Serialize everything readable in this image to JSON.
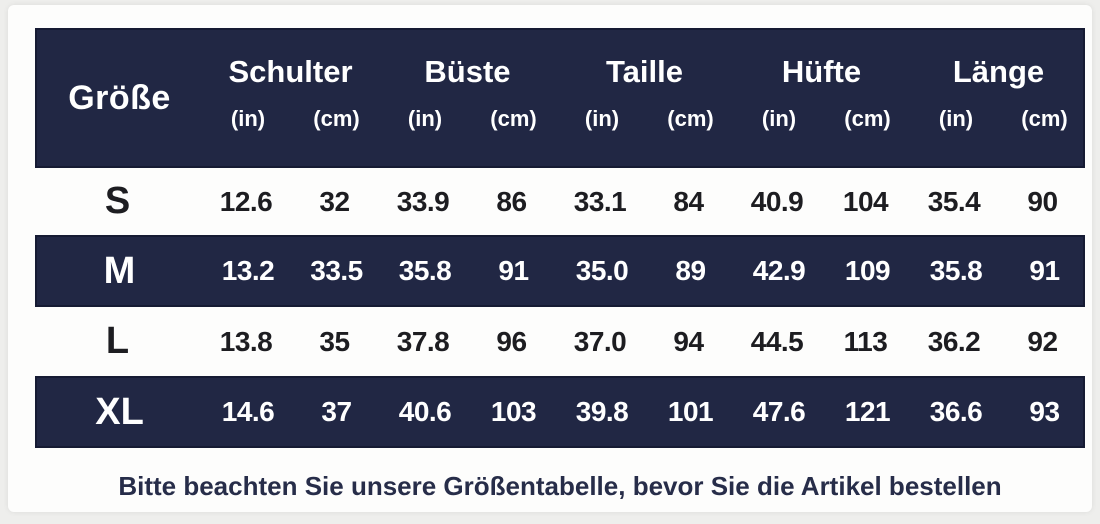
{
  "colors": {
    "band_navy": "#212744",
    "band_border": "#161b33",
    "light_row_text": "#1d1d21",
    "footer_text": "#272d49",
    "card_background": "#fdfdfc"
  },
  "chart_data": {
    "type": "table",
    "size_column_header": "Größe",
    "measure_groups": [
      "Schulter",
      "Büste",
      "Taille",
      "Hüfte",
      "Länge"
    ],
    "units": {
      "in": "(in)",
      "cm": "(cm)"
    },
    "columns": [
      "Größe",
      "Schulter (in)",
      "Schulter (cm)",
      "Büste (in)",
      "Büste (cm)",
      "Taille (in)",
      "Taille (cm)",
      "Hüfte (in)",
      "Hüfte (cm)",
      "Länge (in)",
      "Länge (cm)"
    ],
    "rows": [
      {
        "size": "S",
        "values": [
          "12.6",
          "32",
          "33.9",
          "86",
          "33.1",
          "84",
          "40.9",
          "104",
          "35.4",
          "90"
        ]
      },
      {
        "size": "M",
        "values": [
          "13.2",
          "33.5",
          "35.8",
          "91",
          "35.0",
          "89",
          "42.9",
          "109",
          "35.8",
          "91"
        ]
      },
      {
        "size": "L",
        "values": [
          "13.8",
          "35",
          "37.8",
          "96",
          "37.0",
          "94",
          "44.5",
          "113",
          "36.2",
          "92"
        ]
      },
      {
        "size": "XL",
        "values": [
          "14.6",
          "37",
          "40.6",
          "103",
          "39.8",
          "101",
          "47.6",
          "121",
          "36.6",
          "93"
        ]
      }
    ]
  },
  "footer": {
    "note": "Bitte beachten Sie unsere Größentabelle, bevor Sie die Artikel bestellen"
  }
}
